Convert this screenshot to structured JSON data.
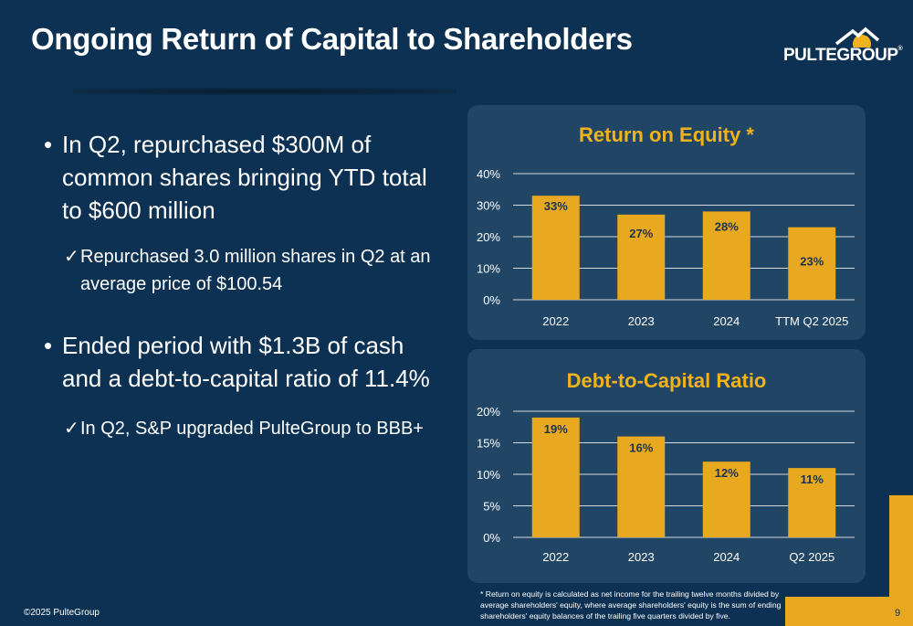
{
  "slide": {
    "title": "Ongoing Return of Capital to Shareholders",
    "logo_text": "PULTEGROUP",
    "logo_reg": "®",
    "page_number": "9",
    "copyright": "©2025 PulteGroup"
  },
  "bullets": [
    {
      "marker": "•",
      "text": "In Q2, repurchased $300M of common shares bringing YTD total to $600 million",
      "sub": {
        "marker": "✓",
        "text": "Repurchased 3.0 million shares in Q2 at an average price of $100.54"
      }
    },
    {
      "marker": "•",
      "text": "Ended period with $1.3B of cash and a debt-to-capital ratio of 11.4%",
      "sub": {
        "marker": "✓",
        "text": "In Q2, S&P upgraded PulteGroup to BBB+"
      }
    }
  ],
  "footnote": "* Return on equity is calculated as net income for the trailing twelve months divided by average shareholders' equity, where average shareholders' equity is the sum of ending shareholders' equity balances of the trailing five quarters divided by five.",
  "colors": {
    "background": "#0d3152",
    "panel": "#214565",
    "accent": "#f0b21d",
    "bar": "#e8a820",
    "bar_label": "#1a3350"
  },
  "chart_data": [
    {
      "type": "bar",
      "title": "Return on Equity *",
      "categories": [
        "2022",
        "2023",
        "2024",
        "TTM Q2 2025"
      ],
      "values": [
        33,
        27,
        28,
        23
      ],
      "labels": [
        "33%",
        "27%",
        "28%",
        "23%"
      ],
      "yticks": [
        "0%",
        "10%",
        "20%",
        "30%",
        "40%"
      ],
      "ylim": [
        0,
        40
      ],
      "grid": true
    },
    {
      "type": "bar",
      "title": "Debt-to-Capital Ratio",
      "categories": [
        "2022",
        "2023",
        "2024",
        "Q2 2025"
      ],
      "values": [
        19,
        16,
        12,
        11
      ],
      "labels": [
        "19%",
        "16%",
        "12%",
        "11%"
      ],
      "yticks": [
        "0%",
        "5%",
        "10%",
        "15%",
        "20%"
      ],
      "ylim": [
        0,
        20
      ],
      "grid": true
    }
  ]
}
